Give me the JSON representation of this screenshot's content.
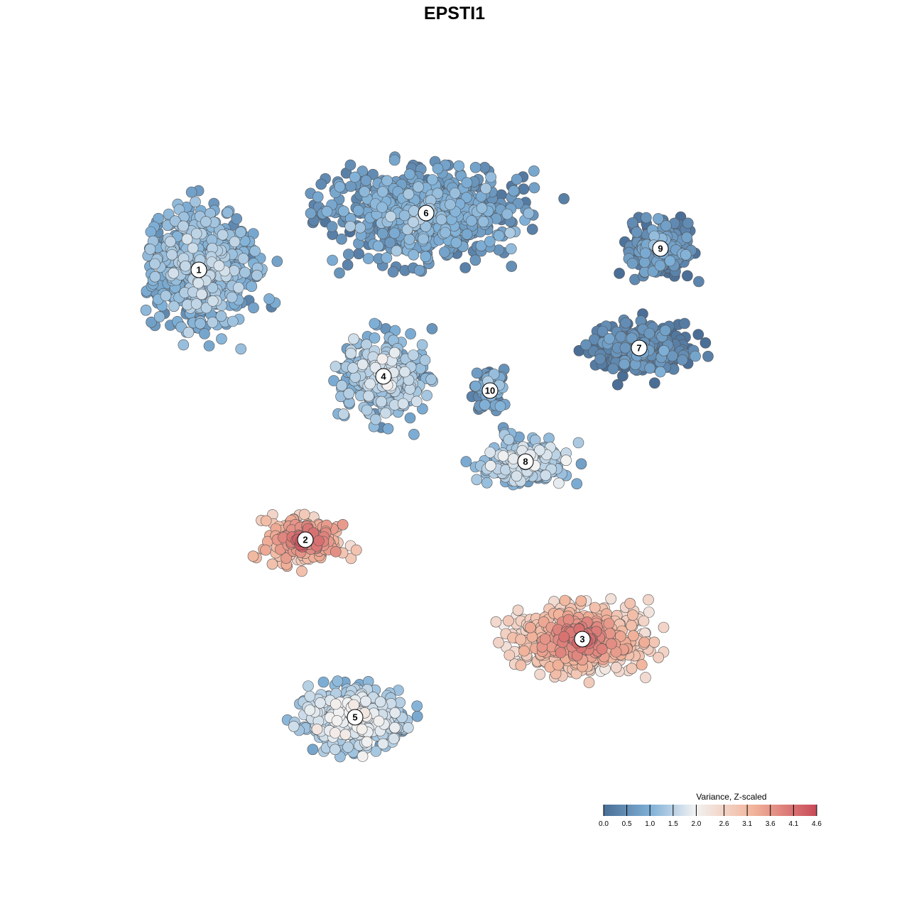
{
  "chart_data": {
    "type": "scatter",
    "title": "EPSTI1",
    "xlabel": "",
    "ylabel": "",
    "grid": false,
    "legend": {
      "title": "Variance, Z-scaled",
      "placement": "bottom-right",
      "range": [
        0.0,
        4.6
      ],
      "ticks": [
        0.0,
        0.5,
        1.0,
        1.5,
        2.0,
        2.6,
        3.1,
        3.6,
        4.1,
        4.6
      ],
      "tick_labels": [
        "0.0",
        "0.5",
        "1.0",
        "1.5",
        "2.0",
        "2.6",
        "3.1",
        "3.6",
        "4.1",
        "4.6"
      ]
    },
    "colors": {
      "low": "#4a6e96",
      "mid_low": "#7fb0d7",
      "mid": "#f2f2f2",
      "mid_high": "#f2b59c",
      "high": "#c84a58"
    },
    "clusters": [
      {
        "label": "1",
        "x": -36,
        "y": 26,
        "mean_value": 1.2
      },
      {
        "label": "2",
        "x": -21,
        "y": -12,
        "mean_value": 3.2
      },
      {
        "label": "3",
        "x": 18,
        "y": -26,
        "mean_value": 3.0
      },
      {
        "label": "4",
        "x": -10,
        "y": 11,
        "mean_value": 1.4
      },
      {
        "label": "5",
        "x": -14,
        "y": -37,
        "mean_value": 1.6
      },
      {
        "label": "6",
        "x": -4,
        "y": 34,
        "mean_value": 0.9
      },
      {
        "label": "7",
        "x": 26,
        "y": 15,
        "mean_value": 0.5
      },
      {
        "label": "8",
        "x": 10,
        "y": -1,
        "mean_value": 1.5
      },
      {
        "label": "9",
        "x": 29,
        "y": 29,
        "mean_value": 0.6
      },
      {
        "label": "10",
        "x": 5,
        "y": 9,
        "mean_value": 0.9
      }
    ]
  }
}
